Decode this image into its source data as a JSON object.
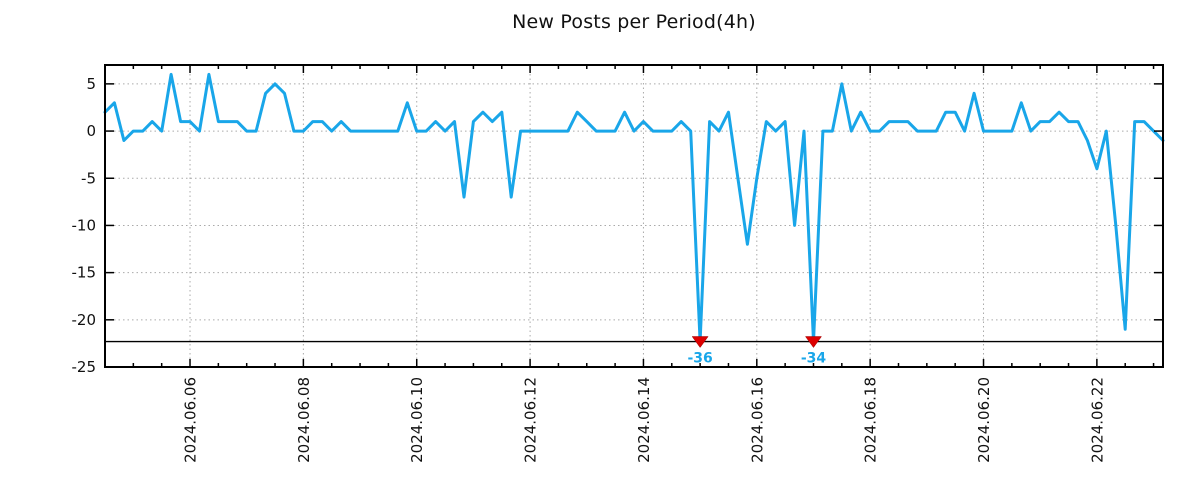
{
  "page": {
    "background": "#ffffff"
  },
  "chart_data": {
    "type": "line",
    "title": "New Posts per Period(4h)",
    "period_hours": 4,
    "x_start": "2024.06.04 12:00",
    "x_end": "2024.06.23 04:00",
    "values": [
      2,
      3,
      -1,
      0,
      0,
      1,
      0,
      6,
      1,
      1,
      0,
      6,
      1,
      1,
      1,
      0,
      0,
      4,
      5,
      4,
      0,
      0,
      1,
      1,
      0,
      1,
      0,
      0,
      0,
      0,
      0,
      0,
      3,
      0,
      0,
      1,
      0,
      1,
      -7,
      1,
      2,
      1,
      2,
      -7,
      0,
      0,
      0,
      0,
      0,
      0,
      2,
      1,
      0,
      0,
      0,
      2,
      0,
      1,
      0,
      0,
      0,
      1,
      0,
      -36,
      1,
      0,
      2,
      -5,
      -12,
      -5,
      1,
      0,
      1,
      -10,
      0,
      -34,
      0,
      0,
      5,
      0,
      2,
      0,
      0,
      1,
      1,
      1,
      0,
      0,
      0,
      2,
      2,
      0,
      4,
      0,
      0,
      0,
      0,
      3,
      0,
      1,
      1,
      2,
      1,
      1,
      -1,
      -4,
      0,
      -10,
      -21,
      1,
      1,
      0,
      -1
    ],
    "ylim": [
      -25,
      7
    ],
    "yticks": [
      5,
      0,
      -5,
      -10,
      -15,
      -20,
      -25
    ],
    "x_tick_labels": [
      "2024.06.06",
      "2024.06.08",
      "2024.06.10",
      "2024.06.12",
      "2024.06.14",
      "2024.06.16",
      "2024.06.18",
      "2024.06.20",
      "2024.06.22"
    ],
    "x_major_start_index": 9,
    "x_major_step": 12,
    "x_minor_step": 3,
    "clip_value": -22.3,
    "clip_line_value": -22.3,
    "annotations": [
      {
        "index": 63,
        "value": -36,
        "label": "-36"
      },
      {
        "index": 75,
        "value": -34,
        "label": "-34"
      }
    ],
    "grid": true,
    "legend_position": "none",
    "colors": {
      "line": "#19a6e9",
      "marker": "#dd0000",
      "grid": "#aaaaaa",
      "axis": "#000000",
      "text": "#111111",
      "annotation_text": "#19a6e9"
    }
  }
}
